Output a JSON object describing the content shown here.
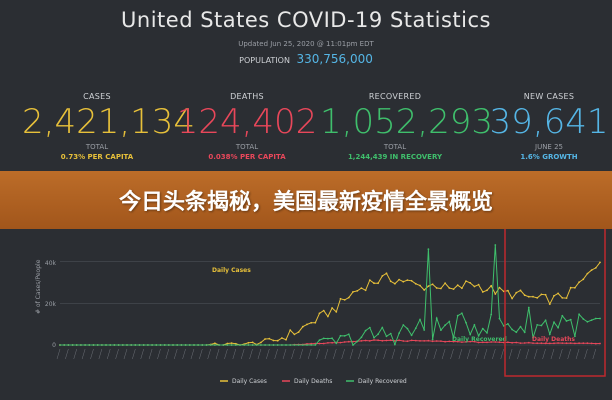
{
  "header": {
    "title": "United States COVID-19 Statistics",
    "updated": "Updated Jun 25, 2020 @ 11:01pm EDT",
    "population_label": "POPULATION",
    "population_value": "330,756,000"
  },
  "stats": [
    {
      "label": "CASES",
      "value": "2,421,134",
      "sub": "TOTAL",
      "sub2": "0.73% PER CAPITA",
      "color": "#e7c03a"
    },
    {
      "label": "DEATHS",
      "value": "124,402",
      "sub": "TOTAL",
      "sub2": "0.038% PER CAPITA",
      "color": "#e8475a"
    },
    {
      "label": "RECOVERED",
      "value": "1,052,293",
      "sub": "TOTAL",
      "sub2": "1,244,439 IN RECOVERY",
      "color": "#3fbf6c"
    },
    {
      "label": "NEW CASES",
      "value": "39,641",
      "sub": "JUNE 25",
      "sub2": "1.6% GROWTH",
      "color": "#55b6e6"
    }
  ],
  "banner": {
    "text": "今日头条揭秘，美国最新疫情全景概览"
  },
  "colors": {
    "cases": "#e7c03a",
    "deaths": "#e8475a",
    "recovered": "#3fbf6c",
    "highlight_box": "#c0282e",
    "banner": "#c47028"
  },
  "chart_data": {
    "type": "line",
    "ylabel": "# of Cases/People",
    "yticks": [
      "0",
      "20k",
      "40k"
    ],
    "ylim": [
      0,
      48000
    ],
    "x_count": 130,
    "legend": [
      "Daily Cases",
      "Daily Deaths",
      "Daily Recovered"
    ],
    "inline_labels": {
      "cases": "Daily Cases",
      "recovered": "Daily Recovered",
      "deaths": "Daily Deaths"
    },
    "series": [
      {
        "name": "Daily Cases",
        "key": "cases",
        "keypoints": [
          [
            0,
            0
          ],
          [
            35,
            0
          ],
          [
            45,
            500
          ],
          [
            52,
            2500
          ],
          [
            57,
            7000
          ],
          [
            62,
            13000
          ],
          [
            66,
            18000
          ],
          [
            70,
            25000
          ],
          [
            74,
            30000
          ],
          [
            78,
            32000
          ],
          [
            82,
            31000
          ],
          [
            86,
            28000
          ],
          [
            90,
            29000
          ],
          [
            94,
            26000
          ],
          [
            98,
            30000
          ],
          [
            102,
            27000
          ],
          [
            106,
            25000
          ],
          [
            110,
            24000
          ],
          [
            114,
            22000
          ],
          [
            118,
            22000
          ],
          [
            122,
            25000
          ],
          [
            126,
            33000
          ],
          [
            128,
            38000
          ],
          [
            129,
            39641
          ]
        ],
        "zigzag": 2500
      },
      {
        "name": "Daily Deaths",
        "key": "deaths",
        "keypoints": [
          [
            0,
            0
          ],
          [
            55,
            0
          ],
          [
            65,
            1000
          ],
          [
            75,
            2200
          ],
          [
            85,
            2000
          ],
          [
            95,
            1600
          ],
          [
            105,
            1200
          ],
          [
            115,
            900
          ],
          [
            129,
            800
          ]
        ],
        "zigzag": 400
      },
      {
        "name": "Daily Recovered",
        "key": "recovered",
        "keypoints": [
          [
            0,
            0
          ],
          [
            60,
            0
          ],
          [
            70,
            3000
          ],
          [
            80,
            6000
          ],
          [
            90,
            8000
          ],
          [
            100,
            10000
          ],
          [
            110,
            9000
          ],
          [
            120,
            10000
          ],
          [
            129,
            9500
          ]
        ],
        "zigzag": 6000,
        "spikes": [
          [
            88,
            46000
          ],
          [
            104,
            48000
          ],
          [
            112,
            18000
          ],
          [
            120,
            14000
          ]
        ]
      }
    ],
    "highlight_range": [
      107,
      129
    ]
  }
}
